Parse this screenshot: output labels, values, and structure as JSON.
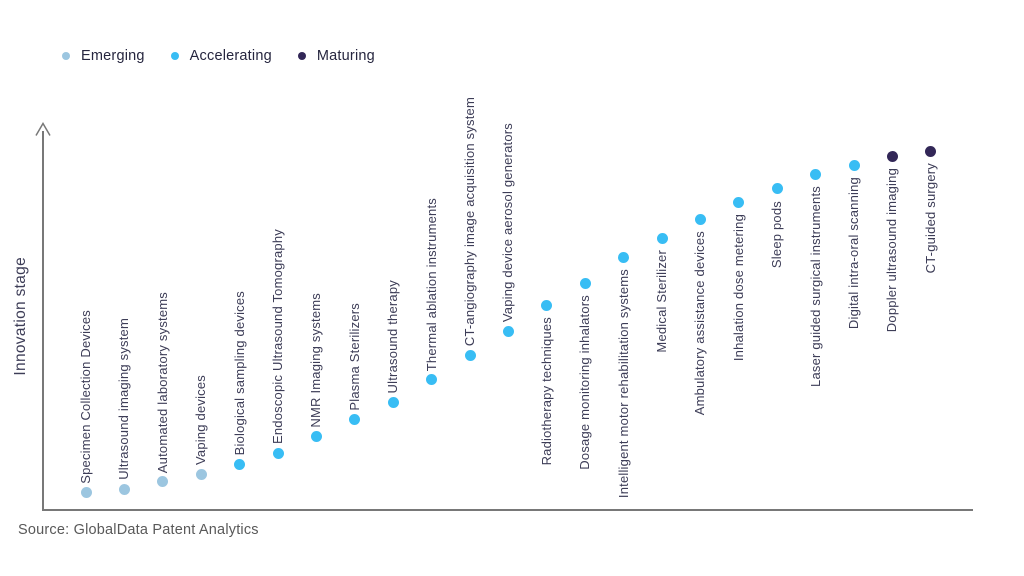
{
  "source": "Source: GlobalData Patent Analytics",
  "chart_data": {
    "type": "scatter",
    "title": "",
    "xlabel": "",
    "ylabel": "Innovation stage",
    "grid": false,
    "legend_position": "top-left",
    "y_axis": {
      "range": [
        0,
        1
      ],
      "ticks": "none",
      "arrow": true
    },
    "x_axis": {
      "ticks": "none",
      "note": "categorical, one slot per technology"
    },
    "legend": [
      {
        "label": "Emerging",
        "color": "#9cc6e0"
      },
      {
        "label": "Accelerating",
        "color": "#38bdf4"
      },
      {
        "label": "Maturing",
        "color": "#322757"
      }
    ],
    "stage_colors": {
      "Emerging": "#9cc6e0",
      "Accelerating": "#38bdf4",
      "Maturing": "#322757"
    },
    "points": [
      {
        "label": "Specimen Collection Devices",
        "stage": "Emerging",
        "value": 0.048,
        "label_position": "above"
      },
      {
        "label": "Ultrasound imaging system",
        "stage": "Emerging",
        "value": 0.058,
        "label_position": "above"
      },
      {
        "label": "Automated laboratory systems",
        "stage": "Emerging",
        "value": 0.077,
        "label_position": "above"
      },
      {
        "label": "Vaping devices",
        "stage": "Emerging",
        "value": 0.098,
        "label_position": "above"
      },
      {
        "label": "Biological sampling devices",
        "stage": "Accelerating",
        "value": 0.124,
        "label_position": "above"
      },
      {
        "label": "Endoscopic Ultrasound Tomography",
        "stage": "Accelerating",
        "value": 0.153,
        "label_position": "above"
      },
      {
        "label": "NMR Imaging systems",
        "stage": "Accelerating",
        "value": 0.196,
        "label_position": "above"
      },
      {
        "label": "Plasma Sterilizers",
        "stage": "Accelerating",
        "value": 0.241,
        "label_position": "above"
      },
      {
        "label": "Ultrasound therapy",
        "stage": "Accelerating",
        "value": 0.288,
        "label_position": "above"
      },
      {
        "label": "Thermal ablation instruments",
        "stage": "Accelerating",
        "value": 0.347,
        "label_position": "above"
      },
      {
        "label": "CT-angiography image acquisition system",
        "stage": "Accelerating",
        "value": 0.412,
        "label_position": "above"
      },
      {
        "label": "Vaping device aerosol generators",
        "stage": "Accelerating",
        "value": 0.476,
        "label_position": "above"
      },
      {
        "label": "Radiotherapy techniques",
        "stage": "Accelerating",
        "value": 0.545,
        "label_position": "below"
      },
      {
        "label": "Dosage monitoring inhalators",
        "stage": "Accelerating",
        "value": 0.603,
        "label_position": "below"
      },
      {
        "label": "Intelligent motor rehabilitation systems",
        "stage": "Accelerating",
        "value": 0.672,
        "label_position": "below"
      },
      {
        "label": "Medical Sterilizer",
        "stage": "Accelerating",
        "value": 0.722,
        "label_position": "below"
      },
      {
        "label": "Ambulatory assistance devices",
        "stage": "Accelerating",
        "value": 0.772,
        "label_position": "below"
      },
      {
        "label": "Inhalation dose metering",
        "stage": "Accelerating",
        "value": 0.817,
        "label_position": "below"
      },
      {
        "label": "Sleep pods",
        "stage": "Accelerating",
        "value": 0.852,
        "label_position": "below"
      },
      {
        "label": "Laser guided surgical instruments",
        "stage": "Accelerating",
        "value": 0.891,
        "label_position": "below"
      },
      {
        "label": "Digital intra-oral scanning",
        "stage": "Accelerating",
        "value": 0.915,
        "label_position": "below"
      },
      {
        "label": "Doppler ultrasound imaging",
        "stage": "Maturing",
        "value": 0.939,
        "label_position": "below"
      },
      {
        "label": "CT-guided surgery",
        "stage": "Maturing",
        "value": 0.952,
        "label_position": "below"
      }
    ]
  }
}
